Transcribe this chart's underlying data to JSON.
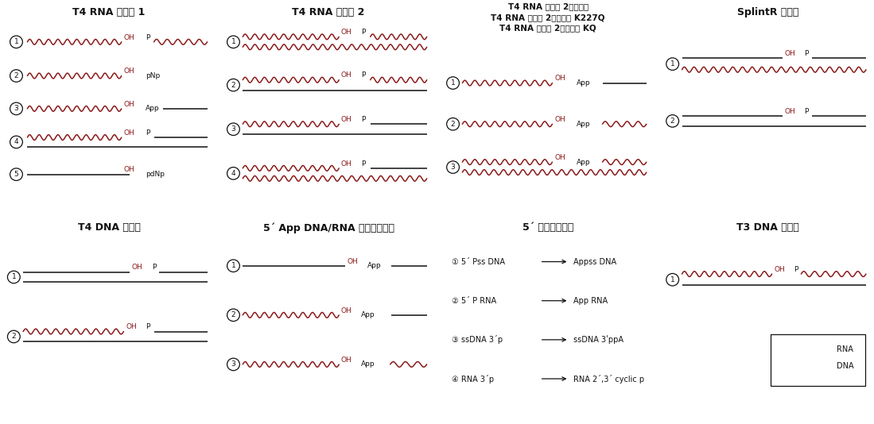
{
  "panel_titles": [
    "T4 RNA 连接酶 1",
    "T4 RNA 连接酶 2",
    "T4 RNA 连接酶 2，截短型\nT4 RNA 连接酶 2，截短型 K227Q\nT4 RNA 连接酶 2，截短型 KQ",
    "SplintR 连接酶",
    "T4 DNA 连接酶",
    "5´ App DNA/RNA 热稳定连接酶",
    "5´ 腺苷化试剂盒",
    "T3 DNA 连接酶"
  ],
  "rna_color": "#8B1A1A",
  "dna_color": "#111111",
  "label_color_red": "#8B1A1A",
  "label_color_black": "#111111",
  "bg_color": "#ffffff",
  "title_fontsize": 9,
  "label_fontsize": 7,
  "circle_fontsize": 6.5
}
